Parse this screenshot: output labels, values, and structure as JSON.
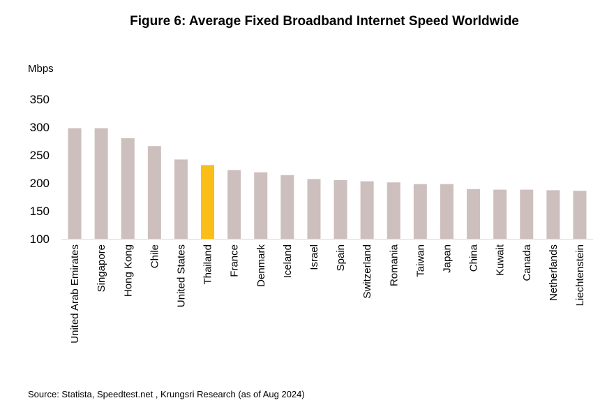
{
  "chart_data": {
    "type": "bar",
    "title": "Figure 6: Average Fixed Broadband Internet Speed Worldwide",
    "ylabel": "Mbps",
    "xlabel": "",
    "ylim": [
      100,
      350
    ],
    "yticks": [
      100,
      150,
      200,
      250,
      300,
      350
    ],
    "grid": false,
    "categories": [
      "United Arab Emirates",
      "Singapore",
      "Hong Kong",
      "Chile",
      "United States",
      "Thailand",
      "France",
      "Denmark",
      "Iceland",
      "Israel",
      "Spain",
      "Switzerland",
      "Romania",
      "Taiwan",
      "Japan",
      "China",
      "Kuwait",
      "Canada",
      "Netherlands",
      "Liechtenstein"
    ],
    "values": [
      298,
      298,
      280,
      266,
      242,
      232,
      223,
      219,
      214,
      207,
      205,
      203,
      201,
      198,
      198,
      189,
      188,
      188,
      187,
      186
    ],
    "colors": {
      "default": "#cdbfbd",
      "highlight": "#fbbd18"
    },
    "highlight": "Thailand"
  },
  "source": "Source: Statista, Speedtest.net , Krungsri Research (as of Aug 2024)"
}
